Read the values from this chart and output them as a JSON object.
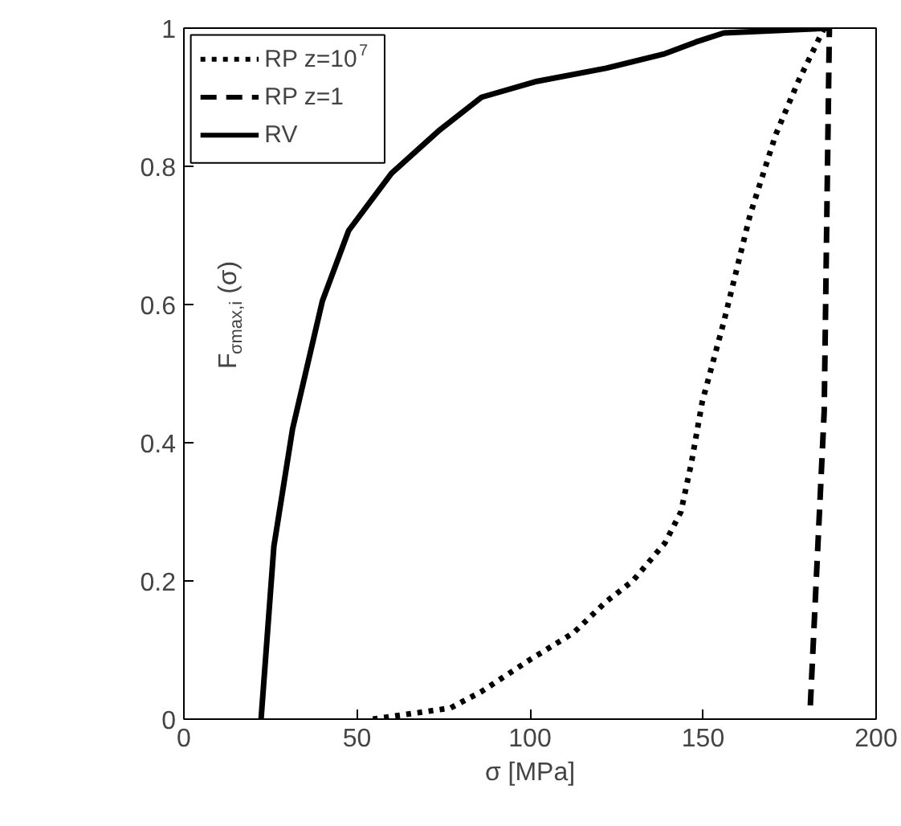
{
  "chart_data": {
    "type": "line",
    "xlabel": "σ [MPa]",
    "ylabel": "F$_{σmax,i}$(σ)",
    "xlim": [
      0,
      200
    ],
    "ylim": [
      0,
      1
    ],
    "xticks": [
      0,
      50,
      100,
      150,
      200
    ],
    "yticks": [
      0,
      0.2,
      0.4,
      0.6,
      0.8,
      1
    ],
    "grid": false,
    "legend": "top left",
    "marker": "none",
    "series": [
      {
        "name": "RP z=10$^{7}$",
        "color": "#000000",
        "line_style": "dotted",
        "x": [
          54.6,
          77,
          86,
          100,
          112.6,
          122,
          129.7,
          139,
          143.6,
          146.6,
          149.8,
          156,
          163.6,
          171,
          177.5,
          185
        ],
        "values": [
          0,
          0.016,
          0.04,
          0.086,
          0.125,
          0.17,
          0.2,
          0.255,
          0.3,
          0.37,
          0.46,
          0.575,
          0.73,
          0.846,
          0.923,
          1.0
        ]
      },
      {
        "name": "RP z=1",
        "color": "#000000",
        "line_style": "dashed",
        "x": [
          181,
          185,
          186.5
        ],
        "values": [
          0.02,
          0.445,
          1.0
        ]
      },
      {
        "name": "RV",
        "color": "#000000",
        "line_style": "solid",
        "x": [
          22.3,
          26,
          31.4,
          40,
          47.6,
          60,
          74,
          86,
          102,
          122,
          139,
          148,
          156,
          187
        ],
        "values": [
          0,
          0.25,
          0.42,
          0.605,
          0.707,
          0.79,
          0.853,
          0.9,
          0.923,
          0.942,
          0.963,
          0.98,
          0.993,
          1.0
        ]
      }
    ]
  }
}
